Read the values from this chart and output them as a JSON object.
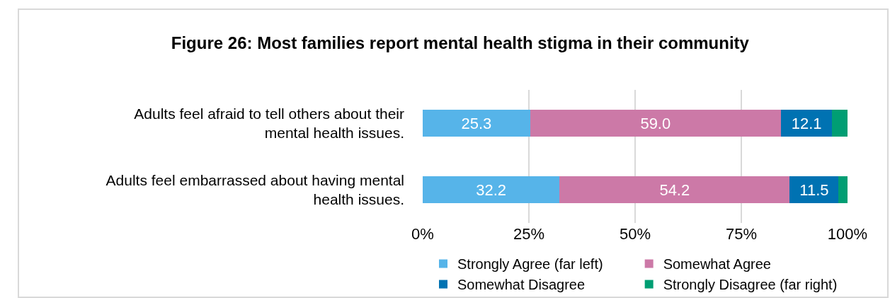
{
  "chart_data": {
    "type": "bar",
    "orientation": "horizontal",
    "stacked": true,
    "title": "Figure 26: Most families report mental health stigma in their community",
    "categories": [
      "Adults feel afraid to tell others about their mental health issues.",
      "Adults feel embarrassed about having mental health issues."
    ],
    "series": [
      {
        "name": "Strongly Agree (far left)",
        "color": "#56b4e9",
        "values": [
          25.3,
          32.2
        ],
        "value_labels": [
          "25.3",
          "32.2"
        ]
      },
      {
        "name": "Somewhat Agree",
        "color": "#cc79a7",
        "values": [
          59.0,
          54.2
        ],
        "value_labels": [
          "59.0",
          "54.2"
        ]
      },
      {
        "name": "Somewhat Disagree",
        "color": "#0072b2",
        "values": [
          12.1,
          11.5
        ],
        "value_labels": [
          "12.1",
          "11.5"
        ]
      },
      {
        "name": "Strongly Disagree (far right)",
        "color": "#009e73",
        "values": [
          3.6,
          2.1
        ],
        "value_labels": [
          null,
          null
        ]
      }
    ],
    "xlim": [
      0,
      100
    ],
    "xticks": [
      {
        "value": 0,
        "label": "0%"
      },
      {
        "value": 25,
        "label": "25%"
      },
      {
        "value": 50,
        "label": "50%"
      },
      {
        "value": 75,
        "label": "75%"
      },
      {
        "value": 100,
        "label": "100%"
      }
    ],
    "grid": "x",
    "legend": "bottom"
  }
}
